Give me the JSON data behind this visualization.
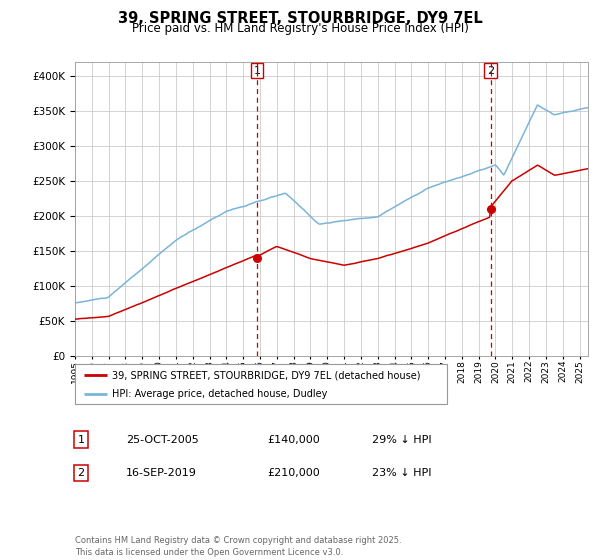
{
  "title": "39, SPRING STREET, STOURBRIDGE, DY9 7EL",
  "subtitle": "Price paid vs. HM Land Registry's House Price Index (HPI)",
  "legend_line1": "39, SPRING STREET, STOURBRIDGE, DY9 7EL (detached house)",
  "legend_line2": "HPI: Average price, detached house, Dudley",
  "sale1_label": "1",
  "sale1_date": "25-OCT-2005",
  "sale1_price": "£140,000",
  "sale1_hpi": "29% ↓ HPI",
  "sale1_year": 2005.82,
  "sale1_value": 140000,
  "sale2_label": "2",
  "sale2_date": "16-SEP-2019",
  "sale2_price": "£210,000",
  "sale2_hpi": "23% ↓ HPI",
  "sale2_year": 2019.71,
  "sale2_value": 210000,
  "hpi_color": "#7ab4d8",
  "price_color": "#cc0000",
  "marker_color": "#cc0000",
  "vline_color": "#cc0000",
  "footnote": "Contains HM Land Registry data © Crown copyright and database right 2025.\nThis data is licensed under the Open Government Licence v3.0.",
  "ylim_min": 0,
  "ylim_max": 420000,
  "background_color": "#ffffff",
  "grid_color": "#cccccc"
}
